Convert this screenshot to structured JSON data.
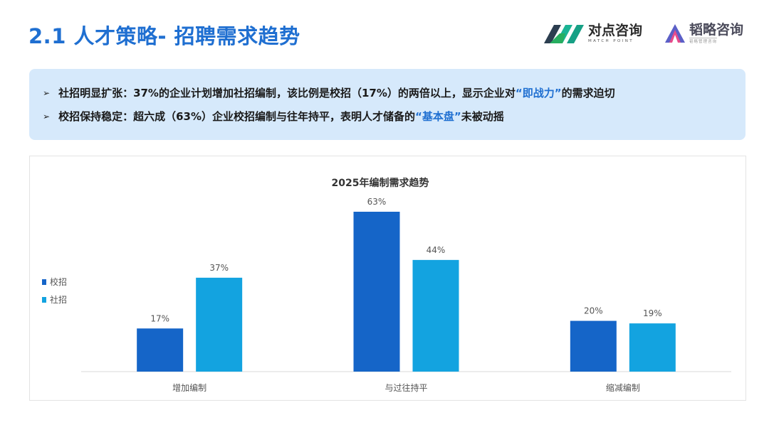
{
  "header": {
    "title": "2.1 人才策略- 招聘需求趋势"
  },
  "logos": {
    "duidian": {
      "name": "对点咨询",
      "sub": "MATCH POINT"
    },
    "taolue": {
      "name": "韬略咨询",
      "sub": "韬略管理咨询"
    }
  },
  "summary": {
    "bullet_marker": "➢",
    "items": [
      {
        "prefix": "社招明显扩张：37%的企业计划增加社招编制，该比例是校招（17%）的两倍以上，显示企业对",
        "highlight": "“即战力”",
        "suffix": "的需求迫切"
      },
      {
        "prefix": "校招保持稳定：超六成（63%）企业校招编制与往年持平，表明人才储备的",
        "highlight": "“基本盘”",
        "suffix": "未被动摇"
      }
    ]
  },
  "colors": {
    "accent": "#1f6fd1",
    "series_campus": "#1565c8",
    "series_social": "#13a3e0",
    "summary_bg": "#d6e9fb"
  },
  "chart_data": {
    "type": "bar",
    "title": "2025年编制需求趋势",
    "categories": [
      "增加编制",
      "与过往持平",
      "缩减编制"
    ],
    "series": [
      {
        "name": "校招",
        "values": [
          17,
          63,
          20
        ]
      },
      {
        "name": "社招",
        "values": [
          37,
          44,
          19
        ]
      }
    ],
    "value_suffix": "%",
    "ylim": [
      0,
      63
    ],
    "grid": false,
    "legend_position": "left"
  }
}
